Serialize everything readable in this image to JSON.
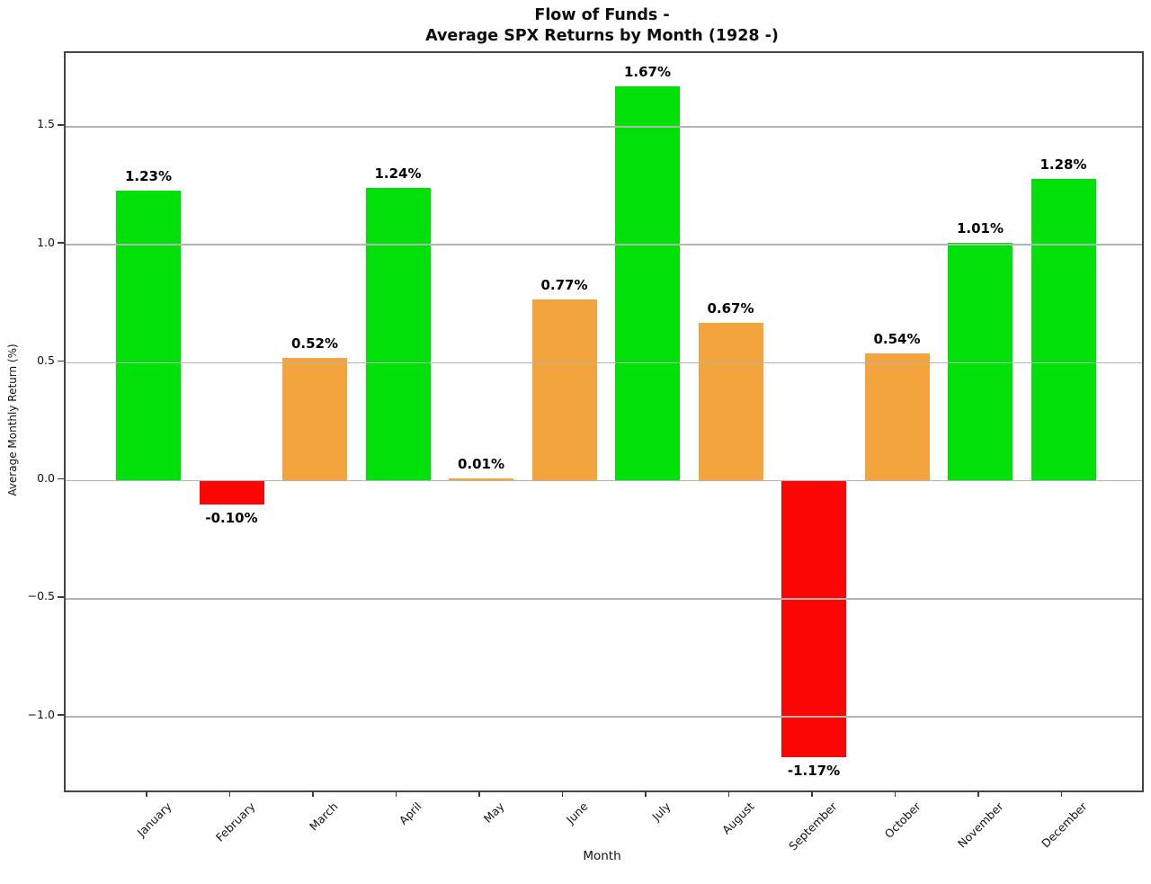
{
  "chart_data": {
    "type": "bar",
    "title_lines": [
      "Flow of Funds -",
      "Average SPX Returns by Month (1928 -)"
    ],
    "xlabel": "Month",
    "ylabel": "Average Monthly Return (%)",
    "categories": [
      "January",
      "February",
      "March",
      "April",
      "May",
      "June",
      "July",
      "August",
      "September",
      "October",
      "November",
      "December"
    ],
    "values": [
      1.23,
      -0.1,
      0.52,
      1.24,
      0.01,
      0.77,
      1.67,
      0.67,
      -1.17,
      0.54,
      1.01,
      1.28
    ],
    "bar_labels": [
      "1.23%",
      "-0.10%",
      "0.52%",
      "1.24%",
      "0.01%",
      "0.77%",
      "1.67%",
      "0.67%",
      "-1.17%",
      "0.54%",
      "1.01%",
      "1.28%"
    ],
    "bar_colors": [
      "green",
      "red",
      "orange",
      "green",
      "orange",
      "orange",
      "green",
      "orange",
      "red",
      "orange",
      "green",
      "green"
    ],
    "palette": {
      "green": "#00E109",
      "orange": "#F3A43D",
      "red": "#FB0505"
    },
    "yticks": [
      1.5,
      1.0,
      0.5,
      0.0,
      -0.5,
      -1.0
    ],
    "ytick_labels": [
      "1.5",
      "1.0",
      "0.5",
      "0.0",
      "−0.5",
      "−1.0"
    ],
    "ylim": [
      -1.312,
      1.812
    ],
    "legend": "none",
    "grid": "horizontal gridlines drawn over bars"
  }
}
